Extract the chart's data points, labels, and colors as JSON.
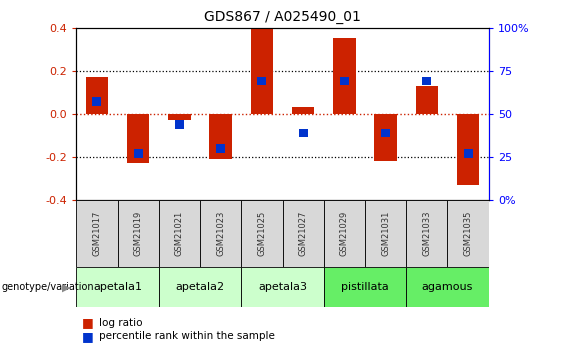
{
  "title": "GDS867 / A025490_01",
  "samples": [
    "GSM21017",
    "GSM21019",
    "GSM21021",
    "GSM21023",
    "GSM21025",
    "GSM21027",
    "GSM21029",
    "GSM21031",
    "GSM21033",
    "GSM21035"
  ],
  "log_ratio": [
    0.17,
    -0.23,
    -0.03,
    -0.21,
    0.4,
    0.03,
    0.35,
    -0.22,
    0.13,
    -0.33
  ],
  "percentile_rank_raw": [
    57,
    27,
    44,
    30,
    69,
    39,
    69,
    39,
    69,
    27
  ],
  "groups": [
    {
      "name": "apetala1",
      "cols": [
        0,
        1
      ],
      "color": "#ccffcc"
    },
    {
      "name": "apetala2",
      "cols": [
        2,
        3
      ],
      "color": "#ccffcc"
    },
    {
      "name": "apetala3",
      "cols": [
        4,
        5
      ],
      "color": "#ccffcc"
    },
    {
      "name": "pistillata",
      "cols": [
        6,
        7
      ],
      "color": "#66ee66"
    },
    {
      "name": "agamous",
      "cols": [
        8,
        9
      ],
      "color": "#66ee66"
    }
  ],
  "bar_color_red": "#cc2200",
  "bar_color_blue": "#0033cc",
  "ylim": [
    -0.4,
    0.4
  ],
  "right_ylim": [
    0,
    100
  ],
  "right_yticks": [
    0,
    25,
    50,
    75,
    100
  ],
  "right_yticklabels": [
    "0%",
    "25",
    "50",
    "75",
    "100%"
  ],
  "left_yticks": [
    -0.4,
    -0.2,
    0.0,
    0.2,
    0.4
  ],
  "bar_width": 0.55,
  "blue_bar_width": 0.22,
  "sample_box_color": "#d8d8d8",
  "fig_bg": "#ffffff"
}
